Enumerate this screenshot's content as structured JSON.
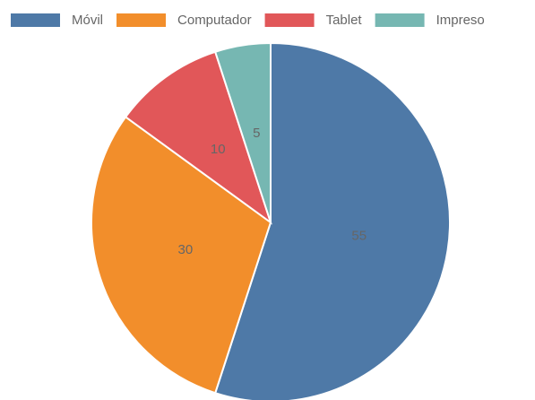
{
  "chart_data": {
    "type": "pie",
    "categories": [
      "Móvil",
      "Computador",
      "Tablet",
      "Impreso"
    ],
    "values": [
      55,
      30,
      10,
      5
    ],
    "colors": [
      "#4e79a7",
      "#f28e2b",
      "#e15759",
      "#76b7b2"
    ],
    "legend": "top"
  }
}
